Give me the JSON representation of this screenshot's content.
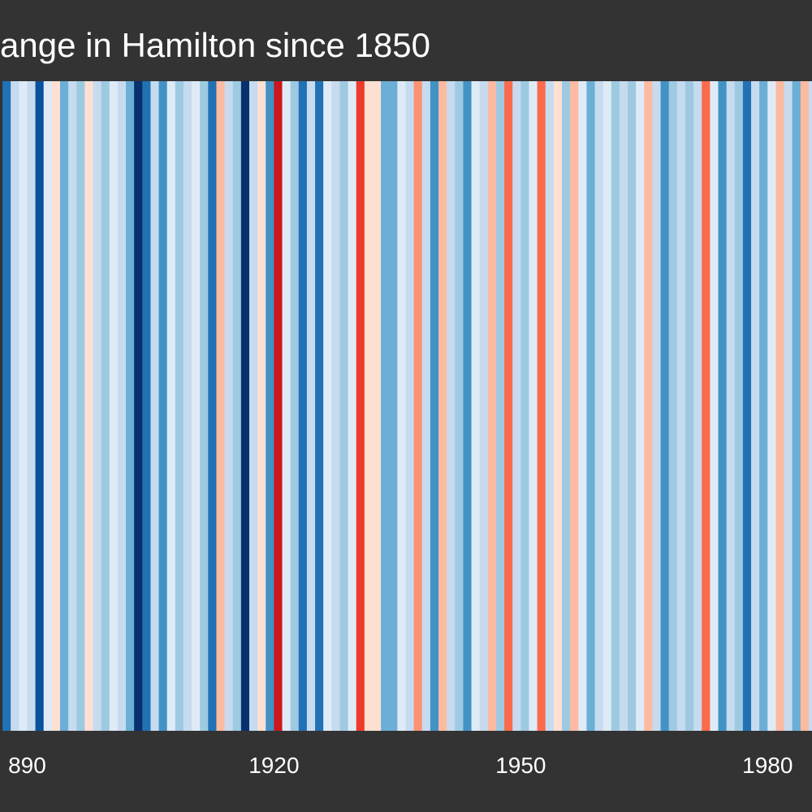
{
  "chart_data": {
    "type": "stripes",
    "title": "ange in Hamilton since 1850",
    "x": [
      1887,
      1888,
      1889,
      1890,
      1891,
      1892,
      1893,
      1894,
      1895,
      1896,
      1897,
      1898,
      1899,
      1900,
      1901,
      1902,
      1903,
      1904,
      1905,
      1906,
      1907,
      1908,
      1909,
      1910,
      1911,
      1912,
      1913,
      1914,
      1915,
      1916,
      1917,
      1918,
      1919,
      1920,
      1921,
      1922,
      1923,
      1924,
      1925,
      1926,
      1927,
      1928,
      1929,
      1930,
      1931,
      1932,
      1933,
      1934,
      1935,
      1936,
      1937,
      1938,
      1939,
      1940,
      1941,
      1942,
      1943,
      1944,
      1945,
      1946,
      1947,
      1948,
      1949,
      1950,
      1951,
      1952,
      1953,
      1954,
      1955,
      1956,
      1957,
      1958,
      1959,
      1960,
      1961,
      1962,
      1963,
      1964,
      1965,
      1966,
      1967,
      1968,
      1969,
      1970,
      1971,
      1972,
      1973,
      1974,
      1975,
      1976,
      1977,
      1978,
      1979,
      1980,
      1981,
      1982,
      1983,
      1984,
      1985
    ],
    "values": [
      -0.7,
      -0.2,
      -0.05,
      -0.2,
      -0.8,
      -0.05,
      0.05,
      -0.45,
      -0.2,
      -0.3,
      0.05,
      -0.2,
      -0.3,
      -0.05,
      -0.2,
      -0.45,
      -0.9,
      -0.7,
      -0.2,
      -0.55,
      -0.05,
      -0.3,
      -0.2,
      -0.05,
      -0.3,
      -0.7,
      0.2,
      -0.2,
      -0.3,
      -0.9,
      -0.2,
      0.05,
      -0.55,
      0.7,
      -0.05,
      -0.3,
      -0.7,
      -0.2,
      -0.7,
      -0.05,
      -0.2,
      -0.3,
      -0.05,
      0.55,
      0.05,
      0.05,
      -0.45,
      -0.45,
      -0.05,
      -0.2,
      0.3,
      -0.2,
      -0.55,
      0.2,
      -0.2,
      -0.3,
      -0.55,
      -0.05,
      -0.2,
      0.2,
      -0.3,
      0.45,
      -0.2,
      -0.3,
      -0.05,
      0.45,
      -0.2,
      0.05,
      -0.3,
      0.2,
      -0.05,
      -0.45,
      -0.2,
      -0.05,
      -0.3,
      -0.2,
      -0.3,
      -0.05,
      0.2,
      -0.2,
      -0.55,
      -0.3,
      -0.2,
      -0.3,
      -0.2,
      0.45,
      -0.05,
      -0.55,
      -0.2,
      -0.3,
      -0.7,
      -0.2,
      -0.45,
      -0.05,
      0.2,
      -0.2,
      -0.45,
      0.2,
      -0.2
    ],
    "vlim": [
      -1,
      1
    ],
    "colors": [
      "#08306b",
      "#08519c",
      "#2171b5",
      "#4292c6",
      "#6baed6",
      "#9ecae1",
      "#c6dbef",
      "#deebf7",
      "#fee0d2",
      "#fcbba1",
      "#fc9272",
      "#fb6a4a",
      "#ef3b2c",
      "#cb181d",
      "#a50f15",
      "#67000d"
    ],
    "xlim": [
      1886.7,
      1985.4
    ],
    "xticks": [
      {
        "value": 1890,
        "label": "890"
      },
      1920,
      1950,
      1980
    ]
  }
}
